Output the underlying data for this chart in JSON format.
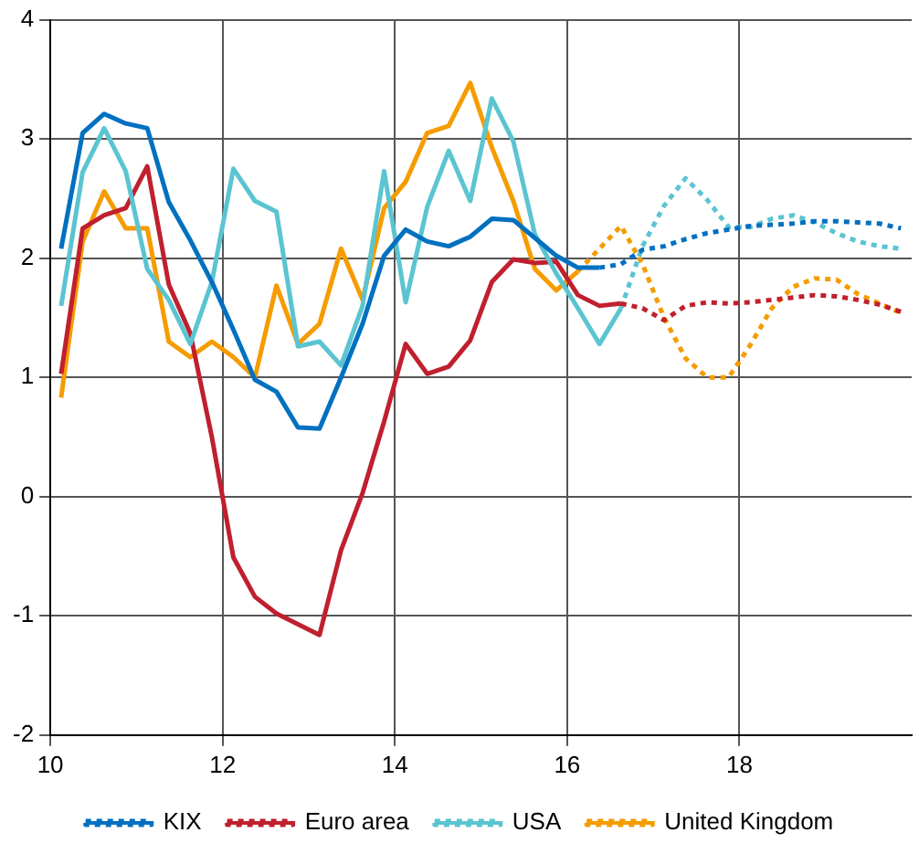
{
  "chart_data": {
    "type": "line",
    "x": [
      10.125,
      10.375,
      10.625,
      10.875,
      11.125,
      11.375,
      11.625,
      11.875,
      12.125,
      12.375,
      12.625,
      12.875,
      13.125,
      13.375,
      13.625,
      13.875,
      14.125,
      14.375,
      14.625,
      14.875,
      15.125,
      15.375,
      15.625,
      15.875,
      16.125,
      16.375,
      16.625,
      16.875,
      17.125,
      17.375,
      17.625,
      17.875,
      18.125,
      18.375,
      18.625,
      18.875,
      19.125,
      19.375,
      19.625,
      19.875
    ],
    "series": [
      {
        "color": "#0070c0",
        "line_style": "solid",
        "values": [
          2.08,
          3.05,
          3.21,
          3.13,
          3.09,
          2.47,
          2.15,
          1.8,
          1.4,
          0.98,
          0.88,
          0.58,
          0.57,
          1.0,
          1.45,
          2.02,
          2.24,
          2.14,
          2.1,
          2.18,
          2.33,
          2.32,
          2.17,
          2.02,
          1.92,
          1.92,
          null,
          null,
          null,
          null,
          null,
          null,
          null,
          null,
          null,
          null,
          null,
          null,
          null,
          null
        ]
      },
      {
        "color": "#5bc4d1",
        "line_style": "solid",
        "values": [
          1.6,
          2.72,
          3.09,
          2.73,
          1.91,
          1.65,
          1.28,
          1.8,
          2.75,
          2.48,
          2.39,
          1.26,
          1.3,
          1.1,
          1.6,
          2.73,
          1.63,
          2.43,
          2.9,
          2.48,
          3.34,
          2.98,
          2.2,
          1.87,
          1.58,
          1.28,
          1.58,
          null,
          null,
          null,
          null,
          null,
          null,
          null,
          null,
          null,
          null,
          null,
          null,
          null
        ]
      },
      {
        "color": "#c0202e",
        "line_style": "solid",
        "values": [
          1.03,
          2.25,
          2.36,
          2.42,
          2.77,
          1.78,
          1.37,
          0.5,
          -0.51,
          -0.84,
          -0.98,
          -1.07,
          -1.16,
          -0.45,
          0.03,
          0.63,
          1.28,
          1.03,
          1.09,
          1.31,
          1.8,
          1.99,
          1.96,
          1.97,
          1.69,
          1.6,
          1.62,
          null,
          null,
          null,
          null,
          null,
          null,
          null,
          null,
          null,
          null,
          null,
          null,
          null
        ]
      },
      {
        "color": "#f59c00",
        "line_style": "solid",
        "values": [
          0.83,
          2.14,
          2.56,
          2.25,
          2.25,
          1.3,
          1.17,
          1.3,
          1.17,
          1.0,
          1.77,
          1.28,
          1.45,
          2.08,
          1.65,
          2.42,
          2.64,
          3.05,
          3.11,
          3.47,
          2.93,
          2.48,
          1.91,
          1.73,
          1.89,
          null,
          null,
          null,
          null,
          null,
          null,
          null,
          null,
          null,
          null,
          null,
          null,
          null,
          null,
          null
        ]
      },
      {
        "name": "KIX",
        "color": "#0070c0",
        "line_style": "dotted",
        "values": [
          null,
          null,
          null,
          null,
          null,
          null,
          null,
          null,
          null,
          null,
          null,
          null,
          null,
          null,
          null,
          null,
          null,
          null,
          null,
          null,
          null,
          null,
          null,
          null,
          null,
          1.92,
          1.95,
          2.07,
          2.1,
          2.16,
          2.21,
          2.24,
          2.27,
          2.28,
          2.29,
          2.31,
          2.31,
          2.3,
          2.29,
          2.25
        ]
      },
      {
        "name": "Euro area",
        "color": "#c0202e",
        "line_style": "dotted",
        "values": [
          null,
          null,
          null,
          null,
          null,
          null,
          null,
          null,
          null,
          null,
          null,
          null,
          null,
          null,
          null,
          null,
          null,
          null,
          null,
          null,
          null,
          null,
          null,
          null,
          null,
          null,
          1.62,
          1.58,
          1.48,
          1.6,
          1.63,
          1.62,
          1.63,
          1.65,
          1.67,
          1.69,
          1.68,
          1.65,
          1.61,
          1.55
        ]
      },
      {
        "name": "USA",
        "color": "#5bc4d1",
        "line_style": "dotted",
        "values": [
          null,
          null,
          null,
          null,
          null,
          null,
          null,
          null,
          null,
          null,
          null,
          null,
          null,
          null,
          null,
          null,
          null,
          null,
          null,
          null,
          null,
          null,
          null,
          null,
          null,
          null,
          1.58,
          2.1,
          2.44,
          2.67,
          2.49,
          2.26,
          2.26,
          2.33,
          2.36,
          2.3,
          2.21,
          2.14,
          2.1,
          2.08
        ]
      },
      {
        "name": "United Kingdom",
        "color": "#f59c00",
        "line_style": "dotted",
        "values": [
          null,
          null,
          null,
          null,
          null,
          null,
          null,
          null,
          null,
          null,
          null,
          null,
          null,
          null,
          null,
          null,
          null,
          null,
          null,
          null,
          null,
          null,
          null,
          null,
          1.89,
          2.08,
          2.27,
          1.95,
          1.5,
          1.16,
          1.0,
          1.0,
          1.27,
          1.58,
          1.76,
          1.83,
          1.82,
          1.7,
          1.62,
          1.54
        ]
      }
    ],
    "xlim": [
      10,
      20
    ],
    "xticks": [
      10,
      12,
      14,
      16,
      18
    ],
    "ylim": [
      -2,
      4
    ],
    "yticks": [
      -2,
      -1,
      0,
      1,
      2,
      3,
      4
    ],
    "grid": true,
    "legend": "bottom",
    "marker": "none"
  }
}
